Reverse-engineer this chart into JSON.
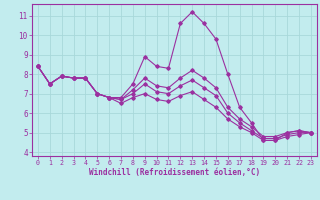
{
  "title": "",
  "xlabel": "Windchill (Refroidissement éolien,°C)",
  "ylabel": "",
  "background_color": "#c2ecee",
  "line_color": "#9b30a0",
  "grid_color": "#a8d8da",
  "xlim": [
    -0.5,
    23.5
  ],
  "ylim": [
    3.8,
    11.6
  ],
  "yticks": [
    4,
    5,
    6,
    7,
    8,
    9,
    10,
    11
  ],
  "xticks": [
    0,
    1,
    2,
    3,
    4,
    5,
    6,
    7,
    8,
    9,
    10,
    11,
    12,
    13,
    14,
    15,
    16,
    17,
    18,
    19,
    20,
    21,
    22,
    23
  ],
  "lines": [
    {
      "x": [
        0,
        1,
        2,
        3,
        4,
        5,
        6,
        7,
        8,
        9,
        10,
        11,
        12,
        13,
        14,
        15,
        16,
        17,
        18,
        19,
        20,
        21,
        22,
        23
      ],
      "y": [
        8.4,
        7.5,
        7.9,
        7.8,
        7.8,
        7.0,
        6.8,
        6.8,
        7.5,
        8.9,
        8.4,
        8.3,
        10.6,
        11.2,
        10.6,
        9.8,
        8.0,
        6.3,
        5.5,
        4.6,
        4.6,
        5.0,
        5.1,
        5.0
      ]
    },
    {
      "x": [
        0,
        1,
        2,
        3,
        4,
        5,
        6,
        7,
        8,
        9,
        10,
        11,
        12,
        13,
        14,
        15,
        16,
        17,
        18,
        19,
        20,
        21,
        22,
        23
      ],
      "y": [
        8.4,
        7.5,
        7.9,
        7.8,
        7.8,
        7.0,
        6.8,
        6.7,
        7.2,
        7.8,
        7.4,
        7.3,
        7.8,
        8.2,
        7.8,
        7.3,
        6.3,
        5.7,
        5.3,
        4.8,
        4.8,
        5.0,
        5.1,
        5.0
      ]
    },
    {
      "x": [
        0,
        1,
        2,
        3,
        4,
        5,
        6,
        7,
        8,
        9,
        10,
        11,
        12,
        13,
        14,
        15,
        16,
        17,
        18,
        19,
        20,
        21,
        22,
        23
      ],
      "y": [
        8.4,
        7.5,
        7.9,
        7.8,
        7.8,
        7.0,
        6.8,
        6.7,
        7.0,
        7.5,
        7.1,
        7.0,
        7.4,
        7.7,
        7.3,
        6.9,
        6.0,
        5.5,
        5.1,
        4.7,
        4.7,
        4.9,
        5.0,
        5.0
      ]
    },
    {
      "x": [
        0,
        1,
        2,
        3,
        4,
        5,
        6,
        7,
        8,
        9,
        10,
        11,
        12,
        13,
        14,
        15,
        16,
        17,
        18,
        19,
        20,
        21,
        22,
        23
      ],
      "y": [
        8.4,
        7.5,
        7.9,
        7.8,
        7.8,
        7.0,
        6.8,
        6.5,
        6.8,
        7.0,
        6.7,
        6.6,
        6.9,
        7.1,
        6.7,
        6.3,
        5.7,
        5.3,
        5.0,
        4.6,
        4.6,
        4.8,
        4.9,
        5.0
      ]
    }
  ]
}
